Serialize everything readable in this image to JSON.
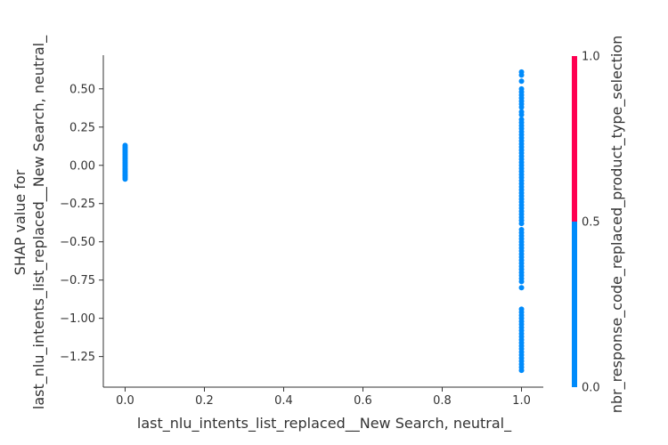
{
  "chart_data": {
    "type": "scatter",
    "title": "",
    "xlabel": "last_nlu_intents_list_replaced__New Search, neutral_",
    "ylabel_lines": [
      "SHAP value for",
      "last_nlu_intents_list_replaced__New Search, neutral_"
    ],
    "xlim": [
      -0.055,
      1.055
    ],
    "ylim": [
      -1.45,
      0.72
    ],
    "x_ticks": [
      0.0,
      0.2,
      0.4,
      0.6,
      0.8,
      1.0
    ],
    "x_tick_labels": [
      "0.0",
      "0.2",
      "0.4",
      "0.6",
      "0.8",
      "1.0"
    ],
    "y_ticks": [
      0.5,
      0.25,
      0.0,
      -0.25,
      -0.5,
      -0.75,
      -1.0,
      -1.25
    ],
    "y_tick_labels": [
      "0.50",
      "0.25",
      "0.00",
      "−0.25",
      "−0.50",
      "−0.75",
      "−1.00",
      "−1.25"
    ],
    "point_color": "#008bfb",
    "series": [
      {
        "name": "x = 0",
        "x": 0.0,
        "y": [
          0.13,
          0.12,
          0.11,
          0.1,
          0.09,
          0.08,
          0.07,
          0.06,
          0.05,
          0.04,
          0.03,
          0.02,
          0.01,
          0.0,
          -0.01,
          -0.02,
          -0.03,
          -0.04,
          -0.05,
          -0.06,
          -0.07,
          -0.08,
          -0.09
        ]
      },
      {
        "name": "x = 1",
        "x": 1.0,
        "y": [
          0.61,
          0.59,
          0.55,
          0.5,
          0.48,
          0.46,
          0.44,
          0.42,
          0.4,
          0.38,
          0.35,
          0.33,
          0.3,
          0.28,
          0.26,
          0.24,
          0.22,
          0.2,
          0.18,
          0.16,
          0.14,
          0.12,
          0.1,
          0.08,
          0.06,
          0.04,
          0.02,
          0.0,
          -0.02,
          -0.04,
          -0.06,
          -0.08,
          -0.1,
          -0.12,
          -0.14,
          -0.16,
          -0.18,
          -0.2,
          -0.22,
          -0.24,
          -0.26,
          -0.28,
          -0.3,
          -0.32,
          -0.34,
          -0.36,
          -0.38,
          -0.42,
          -0.44,
          -0.46,
          -0.48,
          -0.5,
          -0.52,
          -0.54,
          -0.56,
          -0.58,
          -0.6,
          -0.62,
          -0.64,
          -0.66,
          -0.68,
          -0.7,
          -0.72,
          -0.74,
          -0.76,
          -0.8,
          -0.94,
          -0.96,
          -0.98,
          -1.0,
          -1.02,
          -1.04,
          -1.06,
          -1.08,
          -1.1,
          -1.12,
          -1.14,
          -1.16,
          -1.18,
          -1.2,
          -1.22,
          -1.24,
          -1.26,
          -1.28,
          -1.3,
          -1.32,
          -1.34
        ]
      }
    ],
    "colorbar": {
      "label": "nbr_response_code_replaced_product_type_selection",
      "range": [
        0.0,
        1.0
      ],
      "tick_values": [
        1.0,
        0.5,
        0.0
      ],
      "tick_labels": [
        "1.0",
        "0.5",
        "0.0"
      ],
      "segments": [
        {
          "from": 0.0,
          "to": 0.5,
          "color": "#008bfb"
        },
        {
          "from": 0.5,
          "to": 1.0,
          "color": "#ff0051"
        }
      ]
    }
  }
}
